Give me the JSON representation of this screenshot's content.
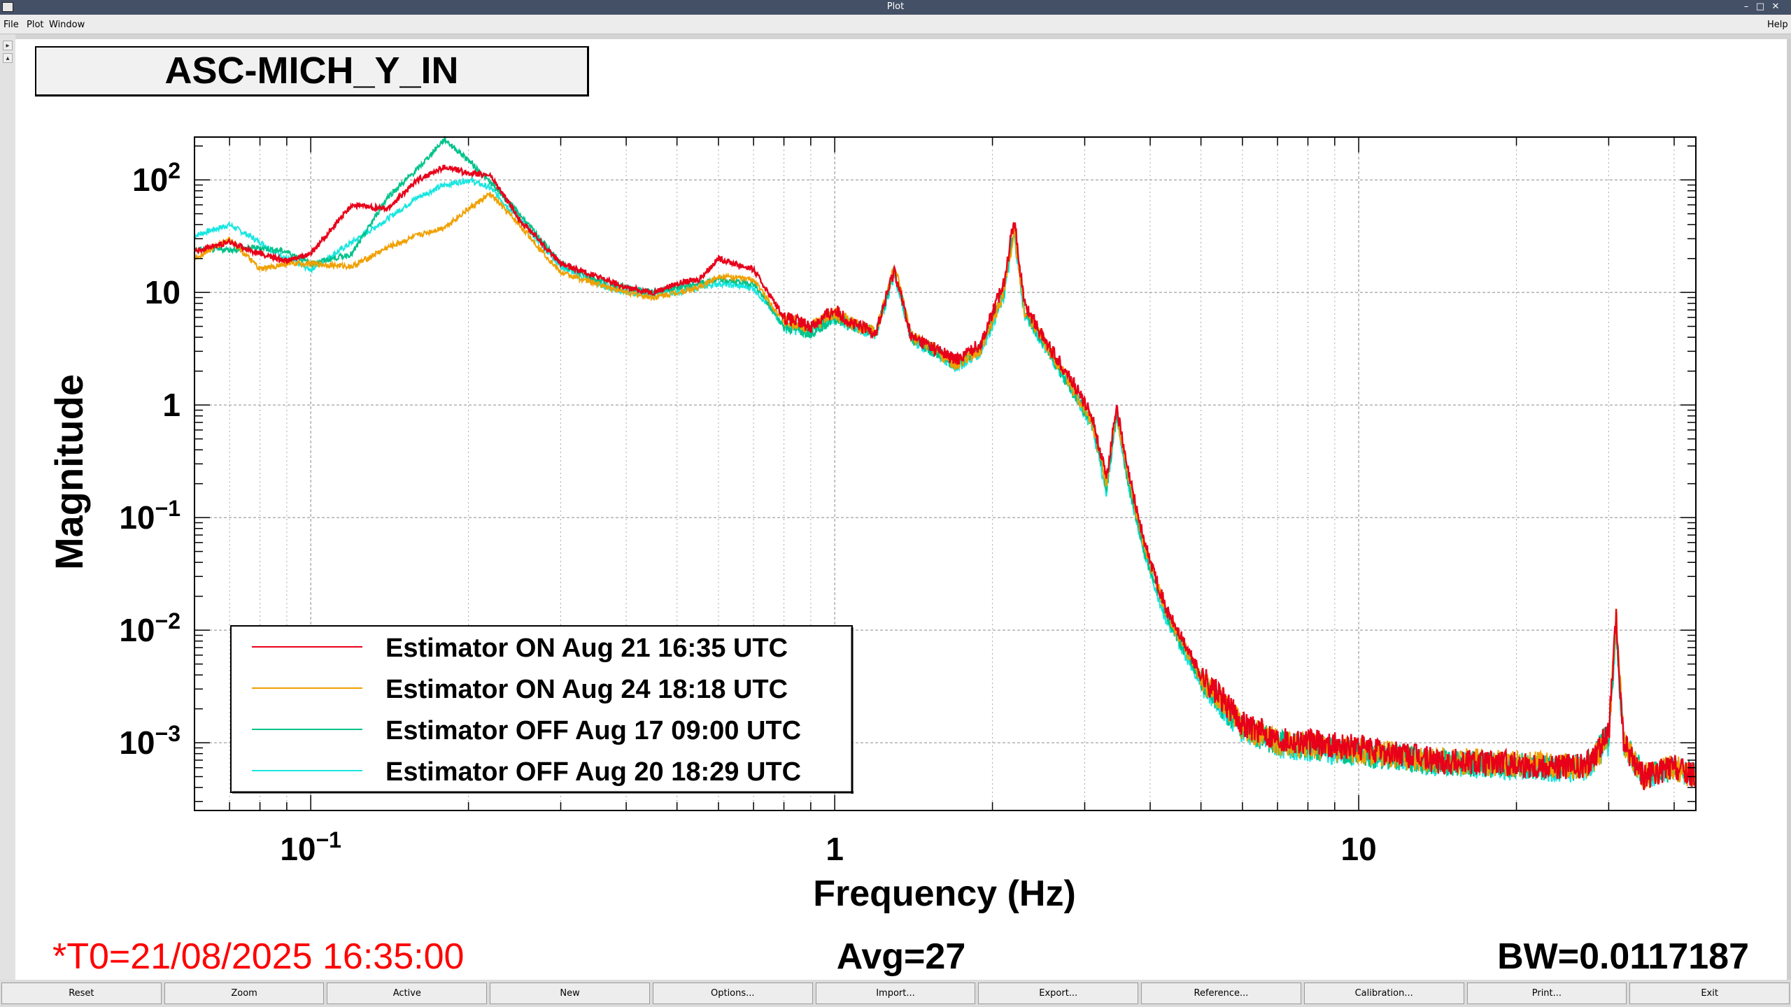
{
  "window": {
    "title": "Plot"
  },
  "menu": {
    "file": "File",
    "plot": "Plot",
    "window": "Window",
    "help": "Help"
  },
  "plot_title": "ASC-MICH_Y_IN",
  "colors": {
    "red": "#e8001a",
    "orange": "#f0a000",
    "green": "#00c28a",
    "cyan": "#19e6e0"
  },
  "footer": {
    "t0": "*T0=21/08/2025 16:35:00",
    "avg": "Avg=27",
    "bw": "BW=0.0117187"
  },
  "buttons": [
    "Reset",
    "Zoom",
    "Active",
    "New",
    "Options...",
    "Import...",
    "Export...",
    "Reference...",
    "Calibration...",
    "Print...",
    "Exit"
  ],
  "chart_data": {
    "type": "line",
    "xlabel": "Frequency (Hz)",
    "ylabel": "Magnitude",
    "x_scale": "log",
    "y_scale": "log",
    "xlim": [
      0.06,
      44
    ],
    "ylim": [
      0.00025,
      240
    ],
    "grid": true,
    "legend_position": "bottom-left",
    "x_ticks": [
      {
        "value": 0.1,
        "base": "10",
        "exp": "−1"
      },
      {
        "value": 1,
        "base": "1",
        "exp": ""
      },
      {
        "value": 10,
        "base": "10",
        "exp": ""
      }
    ],
    "y_ticks": [
      {
        "value": 100,
        "base": "10",
        "exp": "2"
      },
      {
        "value": 10,
        "base": "10",
        "exp": ""
      },
      {
        "value": 1,
        "base": "1",
        "exp": ""
      },
      {
        "value": 0.1,
        "base": "10",
        "exp": "−1"
      },
      {
        "value": 0.01,
        "base": "10",
        "exp": "−2"
      },
      {
        "value": 0.001,
        "base": "10",
        "exp": "−3"
      }
    ],
    "series": [
      {
        "name": "Estimator ON Aug 21 16:35 UTC",
        "color": "#e8001a",
        "points": [
          [
            0.06,
            23
          ],
          [
            0.07,
            28
          ],
          [
            0.08,
            22
          ],
          [
            0.09,
            19
          ],
          [
            0.1,
            22
          ],
          [
            0.12,
            60
          ],
          [
            0.14,
            55
          ],
          [
            0.16,
            100
          ],
          [
            0.18,
            130
          ],
          [
            0.2,
            115
          ],
          [
            0.22,
            110
          ],
          [
            0.25,
            45
          ],
          [
            0.3,
            18
          ],
          [
            0.35,
            14
          ],
          [
            0.4,
            11
          ],
          [
            0.45,
            10
          ],
          [
            0.5,
            12
          ],
          [
            0.55,
            13
          ],
          [
            0.6,
            20
          ],
          [
            0.7,
            16
          ],
          [
            0.8,
            6
          ],
          [
            0.9,
            5
          ],
          [
            1.0,
            7
          ],
          [
            1.1,
            5
          ],
          [
            1.2,
            4.5
          ],
          [
            1.3,
            16
          ],
          [
            1.4,
            4
          ],
          [
            1.5,
            3.5
          ],
          [
            1.7,
            2.5
          ],
          [
            1.9,
            3.5
          ],
          [
            2.1,
            12
          ],
          [
            2.2,
            45
          ],
          [
            2.3,
            8
          ],
          [
            2.5,
            4
          ],
          [
            2.8,
            1.8
          ],
          [
            3.1,
            0.8
          ],
          [
            3.3,
            0.22
          ],
          [
            3.45,
            1.0
          ],
          [
            3.6,
            0.3
          ],
          [
            3.9,
            0.06
          ],
          [
            4.3,
            0.015
          ],
          [
            5,
            0.004
          ],
          [
            6,
            0.0015
          ],
          [
            7,
            0.0011
          ],
          [
            10,
            0.0009
          ],
          [
            14,
            0.0007
          ],
          [
            20,
            0.00065
          ],
          [
            27,
            0.0006
          ],
          [
            30,
            0.0012
          ],
          [
            31,
            0.012
          ],
          [
            32,
            0.001
          ],
          [
            35,
            0.0005
          ],
          [
            40,
            0.0006
          ],
          [
            44,
            0.0005
          ]
        ]
      },
      {
        "name": "Estimator ON Aug 24 18:18 UTC",
        "color": "#f0a000",
        "points": [
          [
            0.06,
            20
          ],
          [
            0.07,
            30
          ],
          [
            0.08,
            16
          ],
          [
            0.09,
            18
          ],
          [
            0.1,
            18
          ],
          [
            0.12,
            17
          ],
          [
            0.14,
            25
          ],
          [
            0.16,
            32
          ],
          [
            0.18,
            38
          ],
          [
            0.2,
            55
          ],
          [
            0.22,
            75
          ],
          [
            0.25,
            40
          ],
          [
            0.3,
            15
          ],
          [
            0.35,
            12
          ],
          [
            0.4,
            10
          ],
          [
            0.45,
            9
          ],
          [
            0.5,
            10
          ],
          [
            0.55,
            11
          ],
          [
            0.6,
            14
          ],
          [
            0.7,
            13
          ],
          [
            0.8,
            5.5
          ],
          [
            0.9,
            5
          ],
          [
            1.0,
            6.5
          ],
          [
            1.1,
            5
          ],
          [
            1.2,
            4.5
          ],
          [
            1.3,
            17
          ],
          [
            1.4,
            4
          ],
          [
            1.5,
            3.5
          ],
          [
            1.7,
            2.3
          ],
          [
            1.9,
            3
          ],
          [
            2.1,
            10
          ],
          [
            2.2,
            35
          ],
          [
            2.3,
            7
          ],
          [
            2.5,
            3.8
          ],
          [
            2.8,
            1.6
          ],
          [
            3.1,
            0.7
          ],
          [
            3.3,
            0.2
          ],
          [
            3.45,
            0.9
          ],
          [
            3.6,
            0.28
          ],
          [
            3.9,
            0.055
          ],
          [
            4.3,
            0.014
          ],
          [
            5,
            0.0038
          ],
          [
            6,
            0.0014
          ],
          [
            7,
            0.001
          ],
          [
            10,
            0.00085
          ],
          [
            14,
            0.0007
          ],
          [
            20,
            0.00065
          ],
          [
            27,
            0.0006
          ],
          [
            30,
            0.001
          ],
          [
            31,
            0.014
          ],
          [
            32,
            0.001
          ],
          [
            35,
            0.0005
          ],
          [
            40,
            0.0006
          ],
          [
            44,
            0.0005
          ]
        ]
      },
      {
        "name": "Estimator OFF Aug 17 09:00 UTC",
        "color": "#00c28a",
        "points": [
          [
            0.06,
            24
          ],
          [
            0.07,
            24
          ],
          [
            0.08,
            25
          ],
          [
            0.09,
            23
          ],
          [
            0.1,
            18
          ],
          [
            0.12,
            22
          ],
          [
            0.14,
            70
          ],
          [
            0.16,
            125
          ],
          [
            0.18,
            230
          ],
          [
            0.2,
            150
          ],
          [
            0.22,
            95
          ],
          [
            0.25,
            50
          ],
          [
            0.3,
            18
          ],
          [
            0.35,
            13
          ],
          [
            0.4,
            11
          ],
          [
            0.45,
            10
          ],
          [
            0.5,
            11
          ],
          [
            0.55,
            12
          ],
          [
            0.6,
            13
          ],
          [
            0.7,
            12
          ],
          [
            0.8,
            5
          ],
          [
            0.9,
            4.5
          ],
          [
            1.0,
            6
          ],
          [
            1.1,
            5
          ],
          [
            1.2,
            4.5
          ],
          [
            1.3,
            16
          ],
          [
            1.4,
            4
          ],
          [
            1.5,
            3.3
          ],
          [
            1.7,
            2.3
          ],
          [
            1.9,
            3.2
          ],
          [
            2.1,
            10
          ],
          [
            2.2,
            38
          ],
          [
            2.3,
            7
          ],
          [
            2.5,
            3.6
          ],
          [
            2.8,
            1.5
          ],
          [
            3.1,
            0.7
          ],
          [
            3.3,
            0.18
          ],
          [
            3.45,
            0.85
          ],
          [
            3.6,
            0.25
          ],
          [
            3.9,
            0.05
          ],
          [
            4.3,
            0.013
          ],
          [
            5,
            0.0036
          ],
          [
            6,
            0.0013
          ],
          [
            7,
            0.001
          ],
          [
            10,
            0.0008
          ],
          [
            14,
            0.00068
          ],
          [
            20,
            0.00062
          ],
          [
            27,
            0.0006
          ],
          [
            30,
            0.0012
          ],
          [
            31,
            0.011
          ],
          [
            32,
            0.001
          ],
          [
            35,
            0.0005
          ],
          [
            40,
            0.0006
          ],
          [
            44,
            0.0005
          ]
        ]
      },
      {
        "name": "Estimator OFF Aug 20 18:29 UTC",
        "color": "#19e6e0",
        "points": [
          [
            0.06,
            32
          ],
          [
            0.07,
            40
          ],
          [
            0.08,
            28
          ],
          [
            0.09,
            20
          ],
          [
            0.1,
            16
          ],
          [
            0.12,
            28
          ],
          [
            0.14,
            45
          ],
          [
            0.16,
            70
          ],
          [
            0.18,
            90
          ],
          [
            0.2,
            100
          ],
          [
            0.22,
            85
          ],
          [
            0.25,
            45
          ],
          [
            0.3,
            17
          ],
          [
            0.35,
            12
          ],
          [
            0.4,
            10
          ],
          [
            0.45,
            9.5
          ],
          [
            0.5,
            10
          ],
          [
            0.55,
            11
          ],
          [
            0.6,
            12
          ],
          [
            0.7,
            11
          ],
          [
            0.8,
            5
          ],
          [
            0.9,
            4.5
          ],
          [
            1.0,
            6
          ],
          [
            1.1,
            5
          ],
          [
            1.2,
            4.3
          ],
          [
            1.3,
            15
          ],
          [
            1.4,
            3.8
          ],
          [
            1.5,
            3.2
          ],
          [
            1.7,
            2.2
          ],
          [
            1.9,
            3
          ],
          [
            2.1,
            9
          ],
          [
            2.2,
            33
          ],
          [
            2.3,
            6.5
          ],
          [
            2.5,
            3.5
          ],
          [
            2.8,
            1.5
          ],
          [
            3.1,
            0.65
          ],
          [
            3.3,
            0.17
          ],
          [
            3.45,
            0.8
          ],
          [
            3.6,
            0.24
          ],
          [
            3.9,
            0.048
          ],
          [
            4.3,
            0.012
          ],
          [
            5,
            0.0035
          ],
          [
            6,
            0.0013
          ],
          [
            7,
            0.00095
          ],
          [
            10,
            0.0008
          ],
          [
            14,
            0.00066
          ],
          [
            20,
            0.0006
          ],
          [
            27,
            0.00058
          ],
          [
            30,
            0.001
          ],
          [
            31,
            0.009
          ],
          [
            32,
            0.001
          ],
          [
            35,
            0.0005
          ],
          [
            40,
            0.0006
          ],
          [
            44,
            0.0005
          ]
        ]
      }
    ]
  }
}
